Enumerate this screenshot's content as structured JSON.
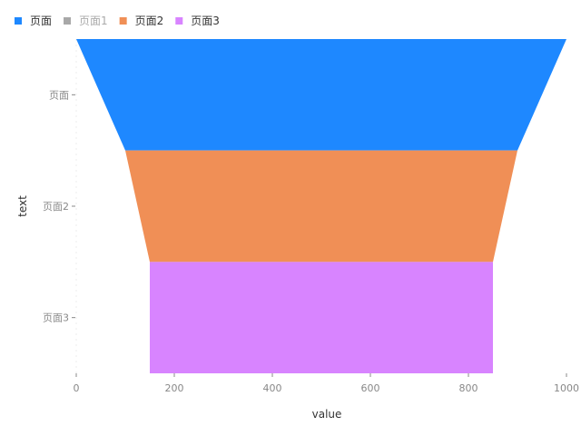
{
  "chart_data": {
    "type": "funnel",
    "orientation": "horizontal",
    "categories": [
      "页面",
      "页面2",
      "页面3"
    ],
    "values": [
      1000,
      800,
      700
    ],
    "colors": [
      "#1e88ff",
      "#f08f56",
      "#d884ff"
    ],
    "legend": [
      {
        "label": "页面",
        "color": "#1e88ff",
        "active": true
      },
      {
        "label": "页面1",
        "color": "#a8a8a8",
        "active": false
      },
      {
        "label": "页面2",
        "color": "#f08f56",
        "active": true
      },
      {
        "label": "页面3",
        "color": "#d884ff",
        "active": true
      }
    ],
    "legend_position": "top-left",
    "xlabel": "value",
    "ylabel": "text",
    "xlim": [
      0,
      1000
    ],
    "xticks": [
      0,
      200,
      400,
      600,
      800,
      1000
    ]
  }
}
